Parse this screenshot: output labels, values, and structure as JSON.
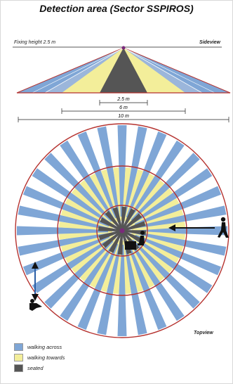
{
  "title": "Detection area (Sector SSPIROS)",
  "sideview": {
    "fixing_height_label": "Fixing height 2.5 m",
    "view_label": "Sideview"
  },
  "dimensions": [
    {
      "label": "2.5 m"
    },
    {
      "label": "6 m"
    },
    {
      "label": "10 m"
    }
  ],
  "topview": {
    "view_label": "Topview"
  },
  "legend": [
    {
      "label": "walking across",
      "color": "#7fa6d6"
    },
    {
      "label": "walking towards",
      "color": "#f3ee9a"
    },
    {
      "label": "seated",
      "color": "#555555"
    }
  ],
  "colors": {
    "ring": "#b5322f",
    "across": "#7fa6d6",
    "towards": "#f3ee9a",
    "seated": "#555555",
    "sensor": "#7a2a7a"
  }
}
